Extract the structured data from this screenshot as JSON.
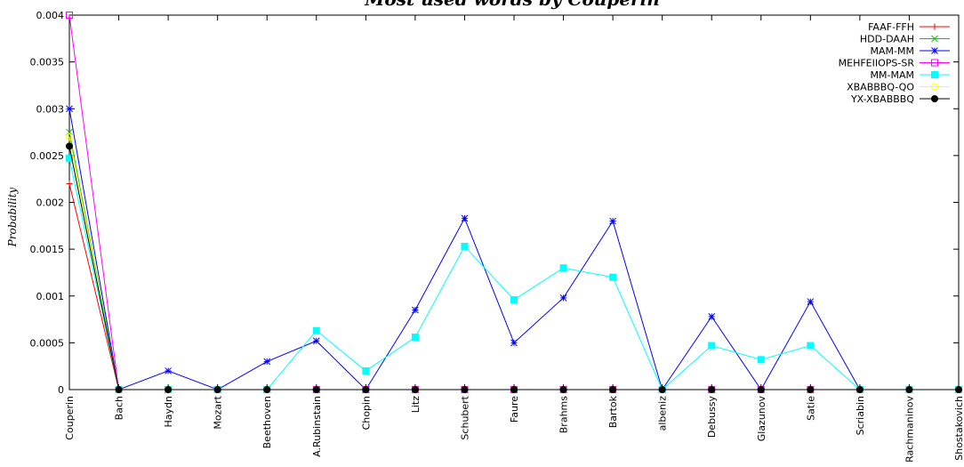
{
  "chart_data": {
    "type": "line",
    "title": "Most used words by Couperin",
    "xlabel": "",
    "ylabel": "Probability",
    "ylim": [
      0,
      0.004
    ],
    "yticks": [
      "0",
      "0.0005",
      "0.001",
      "0.0015",
      "0.002",
      "0.0025",
      "0.003",
      "0.0035",
      "0.004"
    ],
    "categories": [
      "Couperin",
      "Bach",
      "Haydn",
      "Mozart",
      "Beethoven",
      "A.Rubinstain",
      "Chopin",
      "Litz",
      "Schubert",
      "Faure",
      "Brahms",
      "Bartok",
      "albeniz",
      "Debussy",
      "Glazunov",
      "Satie",
      "Scriabin",
      "Rachmaninov",
      "Shostakovich"
    ],
    "legend_position": "top-right",
    "grid": false,
    "series": [
      {
        "name": "FAAF-FFH",
        "color": "#ff0000",
        "marker": "plus",
        "values": [
          0.0022,
          0,
          0,
          0,
          0,
          0,
          0,
          0,
          0,
          0,
          0,
          0,
          0,
          0,
          0,
          0,
          0,
          0,
          0
        ]
      },
      {
        "name": "HDD-DAAH",
        "color": "#00cc00",
        "marker": "cross",
        "values": [
          0.00275,
          0,
          0,
          0,
          0,
          0,
          0,
          0,
          0,
          0,
          0,
          0,
          0,
          0,
          0,
          0,
          0,
          0,
          0
        ]
      },
      {
        "name": "MAM-MM",
        "color": "#0000ff",
        "marker": "star",
        "values": [
          0.003,
          0,
          0.0002,
          0,
          0.0003,
          0.00052,
          0,
          0.00085,
          0.00183,
          0.0005,
          0.00098,
          0.0018,
          0,
          0.00078,
          0,
          0.00094,
          0,
          0,
          0
        ]
      },
      {
        "name": "MEHFEIIOPS-SR",
        "color": "#ff00ff",
        "marker": "open-square",
        "values": [
          0.004,
          0,
          0,
          0,
          0,
          0,
          0,
          0,
          0,
          0,
          0,
          0,
          0,
          0,
          0,
          0,
          0,
          0,
          0
        ]
      },
      {
        "name": "MM-MAM",
        "color": "#00ffff",
        "marker": "filled-square",
        "values": [
          0.00247,
          0,
          0,
          0,
          0,
          0.00063,
          0.0002,
          0.00056,
          0.00153,
          0.00096,
          0.0013,
          0.0012,
          0,
          0.00047,
          0.00032,
          0.00047,
          0,
          0,
          0
        ]
      },
      {
        "name": "XBABBBQ-QO",
        "color": "#ffff00",
        "marker": "open-circle",
        "values": [
          0.0027,
          0,
          0,
          0,
          0,
          0,
          0,
          0,
          0,
          0,
          0,
          0,
          0,
          0,
          0,
          0,
          0,
          0,
          0
        ]
      },
      {
        "name": "YX-XBABBBQ",
        "color": "#000000",
        "marker": "filled-circle",
        "values": [
          0.0026,
          0,
          0,
          0,
          0,
          0,
          0,
          0,
          0,
          0,
          0,
          0,
          0,
          0,
          0,
          0,
          0,
          0,
          0
        ]
      }
    ]
  }
}
